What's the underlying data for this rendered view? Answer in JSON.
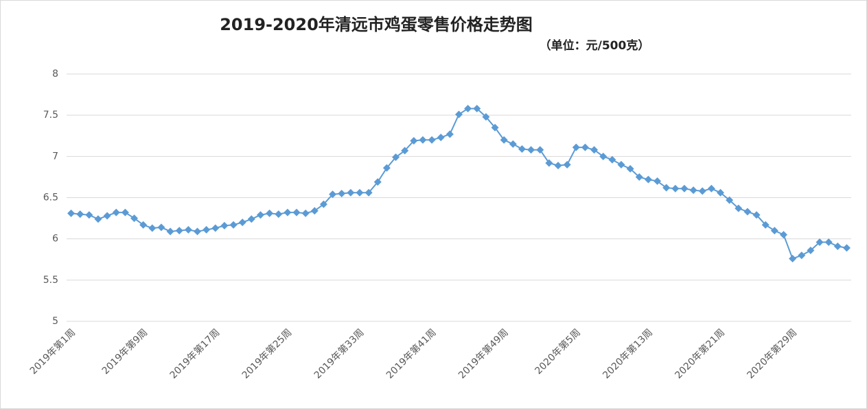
{
  "chart_data": {
    "type": "line",
    "title": "2019-2020年清远市鸡蛋零售价格走势图",
    "subtitle": "（单位：元/500克）",
    "categories": [
      "2019年第1周",
      null,
      null,
      null,
      null,
      null,
      null,
      null,
      "2019年第9周",
      null,
      null,
      null,
      null,
      null,
      null,
      null,
      "2019年第17周",
      null,
      null,
      null,
      null,
      null,
      null,
      null,
      "2019年第25周",
      null,
      null,
      null,
      null,
      null,
      null,
      null,
      "2019年第33周",
      null,
      null,
      null,
      null,
      null,
      null,
      null,
      "2019年第41周",
      null,
      null,
      null,
      null,
      null,
      null,
      null,
      "2019年第49周",
      null,
      null,
      null,
      null,
      null,
      null,
      null,
      "2020年第5周",
      null,
      null,
      null,
      null,
      null,
      null,
      null,
      "2020年第13周",
      null,
      null,
      null,
      null,
      null,
      null,
      null,
      "2020年第21周",
      null,
      null,
      null,
      null,
      null,
      null,
      null,
      "2020年第29周",
      null,
      null,
      null,
      null,
      null,
      null
    ],
    "series": [
      {
        "name": "价格",
        "color": "#5b9bd5",
        "values": [
          6.31,
          6.3,
          6.29,
          6.24,
          6.28,
          6.32,
          6.32,
          6.25,
          6.17,
          6.13,
          6.14,
          6.09,
          6.1,
          6.11,
          6.09,
          6.11,
          6.13,
          6.16,
          6.17,
          6.2,
          6.24,
          6.29,
          6.31,
          6.3,
          6.32,
          6.32,
          6.31,
          6.34,
          6.42,
          6.54,
          6.55,
          6.56,
          6.56,
          6.56,
          6.69,
          6.86,
          6.99,
          7.07,
          7.19,
          7.2,
          7.2,
          7.23,
          7.27,
          7.51,
          7.58,
          7.58,
          7.48,
          7.35,
          7.2,
          7.15,
          7.09,
          7.08,
          7.08,
          6.92,
          6.89,
          6.9,
          7.11,
          7.11,
          7.08,
          7.0,
          6.96,
          6.9,
          6.85,
          6.75,
          6.72,
          6.7,
          6.62,
          6.61,
          6.61,
          6.59,
          6.58,
          6.61,
          6.56,
          6.47,
          6.37,
          6.33,
          6.29,
          6.17,
          6.1,
          6.05,
          5.76,
          5.8,
          5.86,
          5.96,
          5.96,
          5.91,
          5.89
        ]
      }
    ],
    "ylim": [
      5,
      8
    ],
    "yticks": [
      5,
      5.5,
      6,
      6.5,
      7,
      7.5,
      8
    ],
    "grid": true,
    "legend": false
  }
}
